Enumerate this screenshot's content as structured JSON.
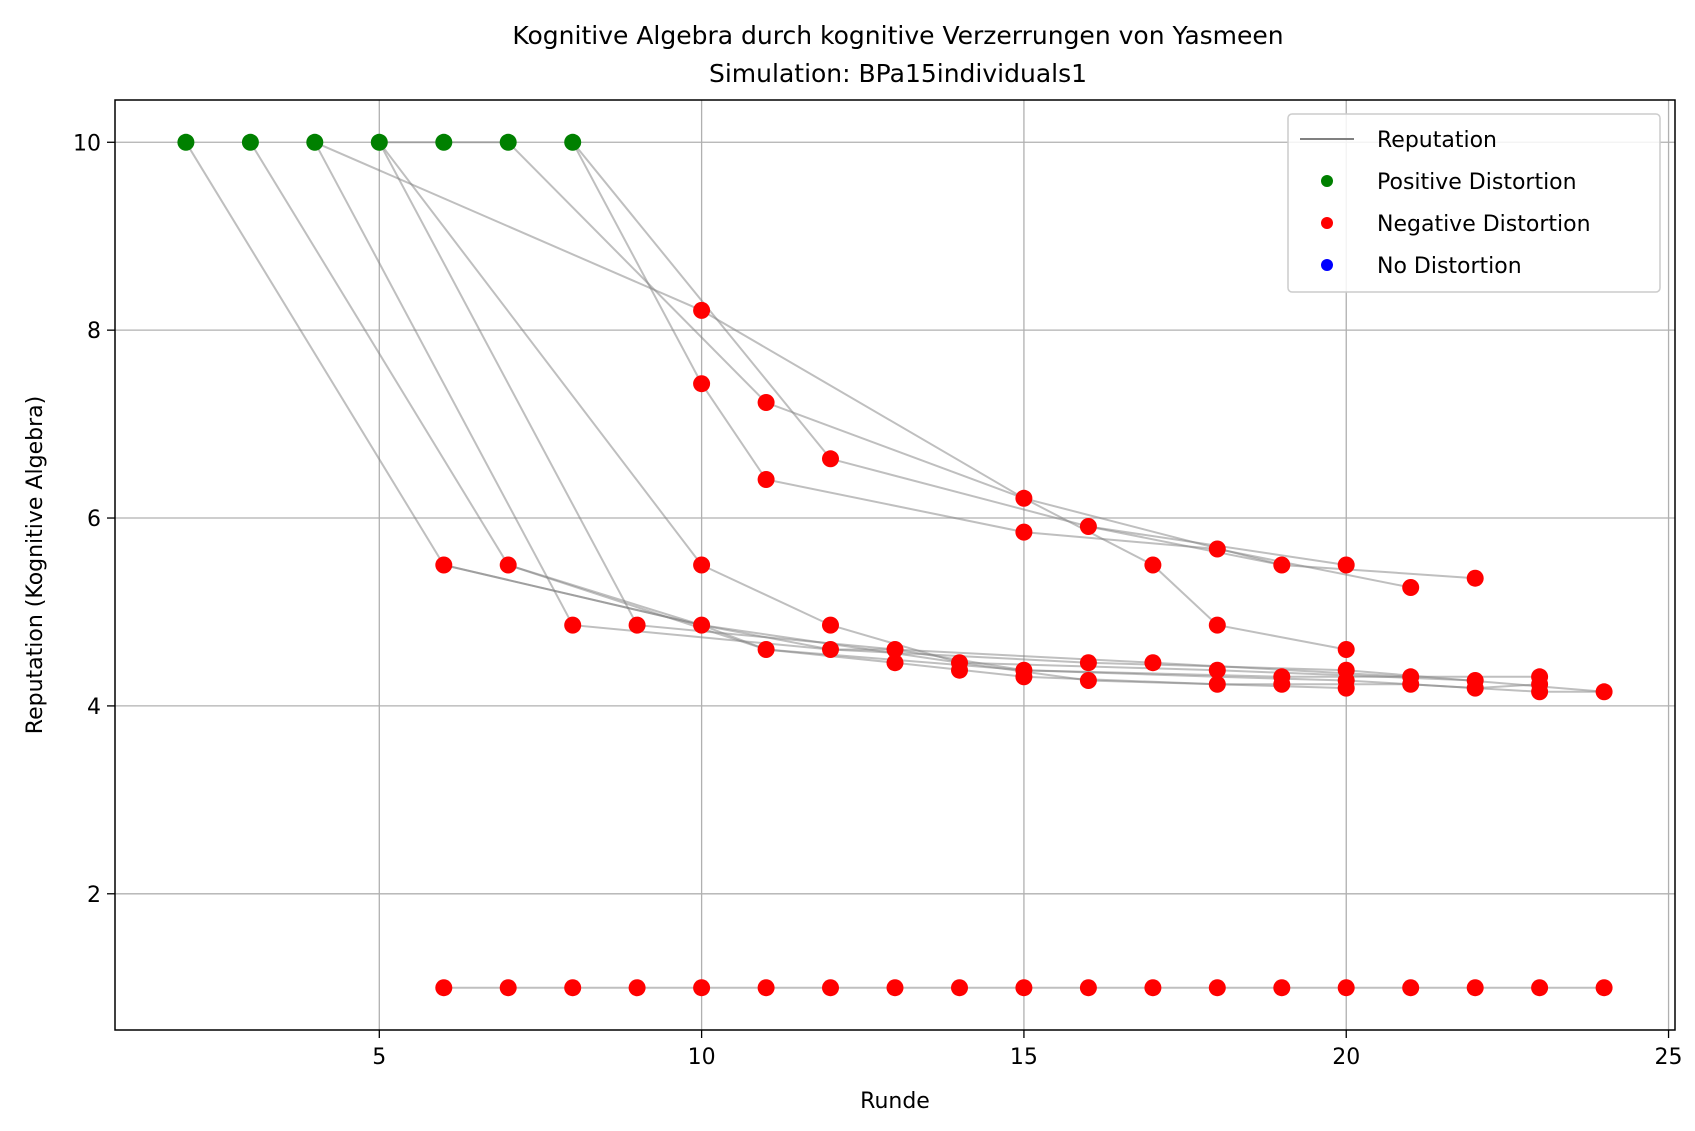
{
  "chart_data": {
    "type": "scatter",
    "title": "Kognitive Algebra durch kognitive Verzerrungen von Yasmeen",
    "subtitle": "Simulation: BPa15individuals1",
    "xlabel": "Runde",
    "ylabel": "Reputation (Kognitive Algebra)",
    "xlim": [
      0.9,
      25.1
    ],
    "ylim": [
      0.55,
      10.45
    ],
    "xticks": [
      5,
      10,
      15,
      20,
      25
    ],
    "yticks": [
      2,
      4,
      6,
      8,
      10
    ],
    "grid": true,
    "legend_position": "top-right",
    "legend": [
      {
        "label": "Reputation",
        "kind": "line",
        "color": "#808080"
      },
      {
        "label": "Positive Distortion",
        "kind": "marker",
        "color": "#008000"
      },
      {
        "label": "Negative Distortion",
        "kind": "marker",
        "color": "#ff0000"
      },
      {
        "label": "No Distortion",
        "kind": "marker",
        "color": "#0000ff"
      }
    ],
    "colors": {
      "line": "#808080",
      "positive": "#008000",
      "negative": "#ff0000",
      "none": "#0000ff"
    },
    "series": [
      {
        "points": [
          [
            2,
            10
          ],
          [
            6,
            5.5
          ],
          [
            10,
            4.86
          ],
          [
            14,
            4.46
          ],
          [
            18,
            4.38
          ],
          [
            22,
            4.27
          ]
        ]
      },
      {
        "points": [
          [
            3,
            10
          ],
          [
            7,
            5.5
          ],
          [
            11,
            4.6
          ],
          [
            15,
            4.38
          ],
          [
            19,
            4.31
          ],
          [
            23,
            4.31
          ]
        ]
      },
      {
        "points": [
          [
            4,
            10
          ],
          [
            8,
            4.86
          ],
          [
            12,
            4.6
          ],
          [
            16,
            4.46
          ],
          [
            20,
            4.38
          ],
          [
            24,
            4.15
          ]
        ]
      },
      {
        "points": [
          [
            5,
            10
          ],
          [
            9,
            4.86
          ],
          [
            13,
            4.6
          ],
          [
            17,
            4.46
          ],
          [
            21,
            4.31
          ]
        ]
      },
      {
        "points": [
          [
            6,
            1
          ],
          [
            24,
            1
          ]
        ]
      },
      {
        "points": [
          [
            7,
            10
          ],
          [
            11,
            7.23
          ],
          [
            15,
            6.21
          ],
          [
            19,
            5.5
          ]
        ]
      },
      {
        "points": [
          [
            8,
            10
          ],
          [
            12,
            6.63
          ],
          [
            16,
            5.91
          ],
          [
            20,
            5.5
          ]
        ]
      },
      {
        "points": [
          [
            4,
            10
          ],
          [
            10,
            8.21
          ],
          [
            15,
            6.21
          ],
          [
            17,
            5.5
          ],
          [
            18,
            4.86
          ],
          [
            20,
            4.6
          ]
        ]
      },
      {
        "points": [
          [
            5,
            10
          ],
          [
            10,
            5.5
          ],
          [
            12,
            4.86
          ],
          [
            14,
            4.46
          ],
          [
            16,
            4.27
          ],
          [
            18,
            4.23
          ],
          [
            20,
            4.19
          ]
        ]
      },
      {
        "points": [
          [
            5,
            10
          ],
          [
            6,
            10
          ],
          [
            7,
            10
          ]
        ]
      },
      {
        "points": [
          [
            6,
            5.5
          ],
          [
            10,
            4.86
          ],
          [
            11,
            4.6
          ],
          [
            13,
            4.46
          ],
          [
            15,
            4.31
          ],
          [
            18,
            4.23
          ],
          [
            20,
            4.23
          ],
          [
            21,
            4.23
          ],
          [
            23,
            4.15
          ],
          [
            24,
            4.15
          ]
        ]
      },
      {
        "points": [
          [
            7,
            5.5
          ],
          [
            10,
            4.86
          ],
          [
            12,
            4.6
          ],
          [
            13,
            4.6
          ],
          [
            15,
            4.38
          ],
          [
            18,
            4.31
          ],
          [
            20,
            4.27
          ],
          [
            22,
            4.19
          ],
          [
            23,
            4.23
          ]
        ]
      },
      {
        "points": [
          [
            8,
            10
          ],
          [
            10,
            7.43
          ],
          [
            11,
            6.41
          ],
          [
            15,
            5.85
          ],
          [
            18,
            5.67
          ],
          [
            21,
            5.26
          ]
        ]
      },
      {
        "points": [
          [
            16,
            5.91
          ],
          [
            19,
            5.5
          ],
          [
            22,
            5.36
          ]
        ]
      }
    ],
    "positive_points": [
      [
        2,
        10
      ],
      [
        3,
        10
      ],
      [
        4,
        10
      ],
      [
        5,
        10
      ],
      [
        6,
        10
      ],
      [
        7,
        10
      ],
      [
        8,
        10
      ]
    ],
    "negative_points": [
      [
        6,
        5.5
      ],
      [
        7,
        5.5
      ],
      [
        8,
        4.86
      ],
      [
        9,
        4.86
      ],
      [
        10,
        8.21
      ],
      [
        10,
        7.43
      ],
      [
        10,
        5.5
      ],
      [
        10,
        4.86
      ],
      [
        11,
        7.23
      ],
      [
        11,
        6.41
      ],
      [
        11,
        4.6
      ],
      [
        12,
        6.63
      ],
      [
        12,
        4.86
      ],
      [
        12,
        4.6
      ],
      [
        13,
        4.6
      ],
      [
        13,
        4.46
      ],
      [
        14,
        4.46
      ],
      [
        14,
        4.38
      ],
      [
        15,
        6.21
      ],
      [
        15,
        5.85
      ],
      [
        15,
        4.38
      ],
      [
        15,
        4.31
      ],
      [
        16,
        5.91
      ],
      [
        16,
        4.46
      ],
      [
        16,
        4.27
      ],
      [
        17,
        5.5
      ],
      [
        17,
        4.46
      ],
      [
        18,
        5.67
      ],
      [
        18,
        4.86
      ],
      [
        18,
        4.38
      ],
      [
        18,
        4.23
      ],
      [
        19,
        5.5
      ],
      [
        19,
        4.31
      ],
      [
        19,
        4.23
      ],
      [
        20,
        5.5
      ],
      [
        20,
        4.6
      ],
      [
        20,
        4.38
      ],
      [
        20,
        4.27
      ],
      [
        20,
        4.19
      ],
      [
        21,
        5.26
      ],
      [
        21,
        4.31
      ],
      [
        21,
        4.23
      ],
      [
        22,
        5.36
      ],
      [
        22,
        4.27
      ],
      [
        22,
        4.19
      ],
      [
        23,
        4.31
      ],
      [
        23,
        4.23
      ],
      [
        23,
        4.15
      ],
      [
        24,
        4.15
      ],
      [
        6,
        1
      ],
      [
        7,
        1
      ],
      [
        8,
        1
      ],
      [
        9,
        1
      ],
      [
        10,
        1
      ],
      [
        11,
        1
      ],
      [
        12,
        1
      ],
      [
        13,
        1
      ],
      [
        14,
        1
      ],
      [
        15,
        1
      ],
      [
        16,
        1
      ],
      [
        17,
        1
      ],
      [
        18,
        1
      ],
      [
        19,
        1
      ],
      [
        20,
        1
      ],
      [
        21,
        1
      ],
      [
        22,
        1
      ],
      [
        23,
        1
      ],
      [
        24,
        1
      ]
    ],
    "no_distortion_points": []
  }
}
